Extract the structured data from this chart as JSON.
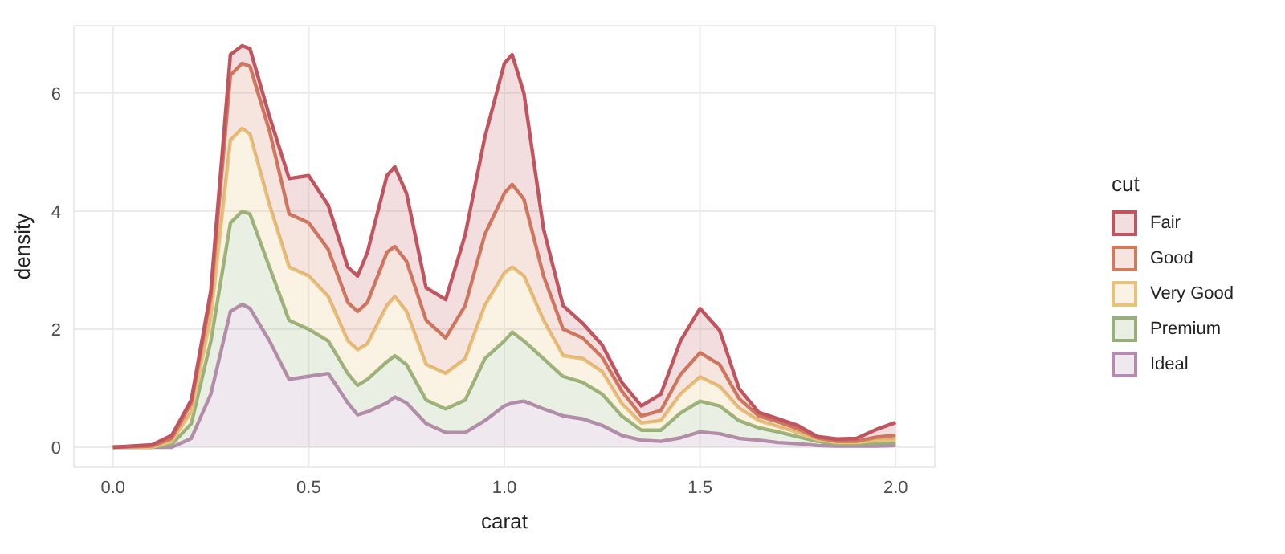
{
  "chart_data": {
    "type": "area",
    "stacked": true,
    "xlabel": "carat",
    "ylabel": "density",
    "legend_title": "cut",
    "legend": "right",
    "grid": true,
    "x": [
      0,
      0.1,
      0.15,
      0.2,
      0.25,
      0.3,
      0.33,
      0.35,
      0.4,
      0.45,
      0.5,
      0.55,
      0.6,
      0.625,
      0.65,
      0.7,
      0.72,
      0.75,
      0.8,
      0.85,
      0.9,
      0.95,
      1.0,
      1.02,
      1.05,
      1.1,
      1.15,
      1.2,
      1.25,
      1.3,
      1.35,
      1.4,
      1.45,
      1.5,
      1.55,
      1.6,
      1.65,
      1.7,
      1.75,
      1.8,
      1.85,
      1.9,
      1.95,
      2.0
    ],
    "xlim": [
      -0.1,
      2.1
    ],
    "xticks": [
      {
        "value": 0,
        "label": "0.0"
      },
      0.5,
      {
        "value": 1,
        "label": "1.0"
      },
      1.5,
      {
        "value": 2,
        "label": "2.0"
      }
    ],
    "ylim": [
      -0.34,
      7.14
    ],
    "yticks": [
      0,
      2,
      4,
      6
    ],
    "series": [
      {
        "name": "Ideal",
        "color": "#b48aae",
        "values": [
          0,
          0,
          0,
          0.15,
          0.9,
          2.3,
          2.42,
          2.35,
          1.8,
          1.15,
          1.2,
          1.25,
          0.75,
          0.55,
          0.6,
          0.75,
          0.85,
          0.75,
          0.4,
          0.25,
          0.25,
          0.45,
          0.7,
          0.75,
          0.78,
          0.65,
          0.53,
          0.48,
          0.37,
          0.2,
          0.12,
          0.1,
          0.16,
          0.26,
          0.23,
          0.15,
          0.12,
          0.08,
          0.06,
          0.03,
          0.02,
          0.02,
          0.02,
          0.03
        ]
      },
      {
        "name": "Premium",
        "color": "#96b07a",
        "values": [
          0,
          0,
          0.05,
          0.25,
          0.9,
          1.5,
          1.58,
          1.6,
          1.25,
          1.0,
          0.8,
          0.55,
          0.5,
          0.5,
          0.55,
          0.7,
          0.7,
          0.65,
          0.4,
          0.4,
          0.55,
          1.05,
          1.1,
          1.2,
          1.02,
          0.85,
          0.67,
          0.62,
          0.53,
          0.33,
          0.17,
          0.19,
          0.42,
          0.52,
          0.47,
          0.3,
          0.21,
          0.18,
          0.12,
          0.07,
          0.03,
          0.03,
          0.05,
          0.05
        ]
      },
      {
        "name": "Very Good",
        "color": "#e8c27a",
        "values": [
          0,
          0,
          0.05,
          0.2,
          0.4,
          1.4,
          1.4,
          1.35,
          1.05,
          0.9,
          0.9,
          0.75,
          0.55,
          0.6,
          0.6,
          0.95,
          1.0,
          0.9,
          0.6,
          0.6,
          0.7,
          0.9,
          1.15,
          1.1,
          1.1,
          0.65,
          0.35,
          0.4,
          0.38,
          0.21,
          0.12,
          0.16,
          0.32,
          0.41,
          0.33,
          0.21,
          0.12,
          0.09,
          0.07,
          0.03,
          0.03,
          0.03,
          0.05,
          0.05
        ]
      },
      {
        "name": "Good",
        "color": "#d07a60",
        "values": [
          0,
          0.02,
          0.05,
          0.15,
          0.35,
          1.1,
          1.1,
          1.15,
          1.25,
          0.9,
          0.9,
          0.8,
          0.65,
          0.65,
          0.7,
          0.9,
          0.85,
          0.85,
          0.75,
          0.6,
          0.9,
          1.2,
          1.35,
          1.4,
          1.3,
          0.75,
          0.45,
          0.35,
          0.24,
          0.21,
          0.12,
          0.17,
          0.33,
          0.41,
          0.37,
          0.16,
          0.08,
          0.08,
          0.06,
          0.03,
          0.02,
          0.02,
          0.05,
          0.07
        ]
      },
      {
        "name": "Fair",
        "color": "#c0545f",
        "values": [
          0,
          0.02,
          0.05,
          0.05,
          0.1,
          0.35,
          0.3,
          0.3,
          0.25,
          0.6,
          0.8,
          0.75,
          0.6,
          0.6,
          0.85,
          1.3,
          1.35,
          1.15,
          0.55,
          0.65,
          1.2,
          1.65,
          2.2,
          2.2,
          1.8,
          0.8,
          0.4,
          0.25,
          0.21,
          0.15,
          0.17,
          0.28,
          0.57,
          0.75,
          0.58,
          0.17,
          0.06,
          0.05,
          0.06,
          0.02,
          0.04,
          0.05,
          0.13,
          0.22
        ]
      }
    ]
  }
}
